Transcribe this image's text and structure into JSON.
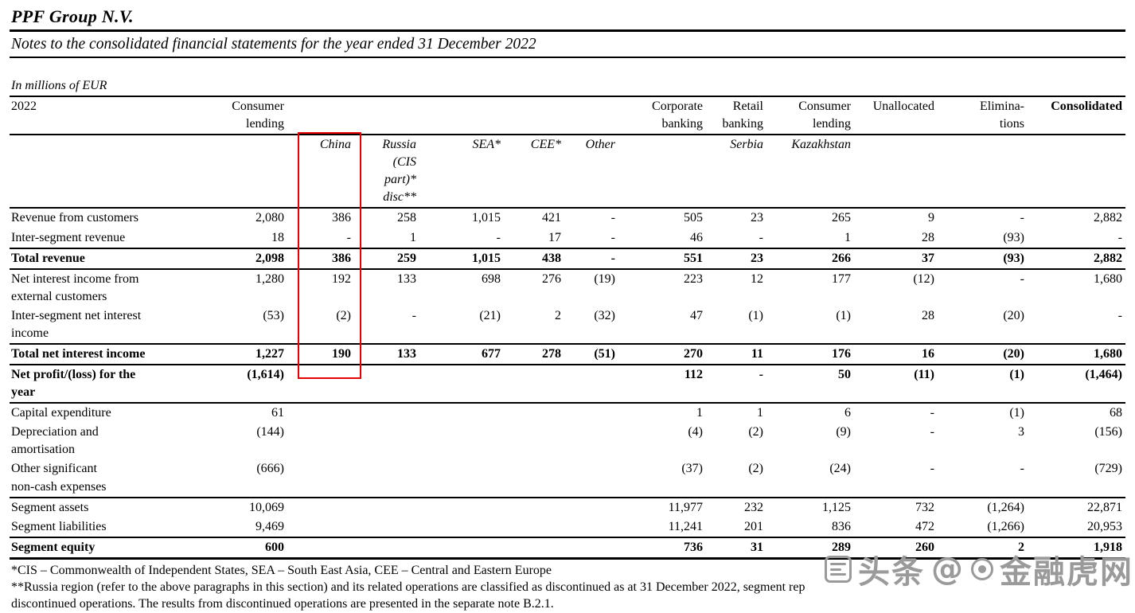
{
  "page": {
    "title": "PPF Group N.V.",
    "subtitle": "Notes to the consolidated financial statements for the year ended 31 December 2022",
    "units_label": "In millions of EUR"
  },
  "table": {
    "header_row1": [
      "2022",
      "Consumer\nlending",
      "",
      "",
      "",
      "",
      "",
      "Corporate\nbanking",
      "Retail\nbanking",
      "Consumer\nlending",
      "Unallocated",
      "Elimina-\ntions",
      "Consolidated"
    ],
    "header_row1_bold_index": 12,
    "header_row2": [
      "",
      "",
      "China",
      "Russia\n(CIS\npart)*\ndisc**",
      "SEA*",
      "CEE*",
      "Other",
      "",
      "Serbia",
      "Kazakhstan",
      "",
      "",
      ""
    ],
    "rows": [
      {
        "label": "Revenue from customers",
        "values": [
          "2,080",
          "386",
          "258",
          "1,015",
          "421",
          "-",
          "505",
          "23",
          "265",
          "9",
          "-",
          "2,882"
        ]
      },
      {
        "label": "Inter-segment revenue",
        "values": [
          "18",
          "-",
          "1",
          "-",
          "17",
          "-",
          "46",
          "-",
          "1",
          "28",
          "(93)",
          "-"
        ]
      },
      {
        "label": "Total revenue",
        "emphasis": true,
        "line_above": true,
        "line_below": true,
        "values": [
          "2,098",
          "386",
          "259",
          "1,015",
          "438",
          "-",
          "551",
          "23",
          "266",
          "37",
          "(93)",
          "2,882"
        ]
      },
      {
        "label": "Net interest income from\nexternal customers",
        "values": [
          "1,280",
          "192",
          "133",
          "698",
          "276",
          "(19)",
          "223",
          "12",
          "177",
          "(12)",
          "-",
          "1,680"
        ]
      },
      {
        "label": "Inter-segment net interest\nincome",
        "values": [
          "(53)",
          "(2)",
          "-",
          "(21)",
          "2",
          "(32)",
          "47",
          "(1)",
          "(1)",
          "28",
          "(20)",
          "-"
        ]
      },
      {
        "label": "Total net interest income",
        "emphasis": true,
        "line_above": true,
        "line_below": true,
        "values": [
          "1,227",
          "190",
          "133",
          "677",
          "278",
          "(51)",
          "270",
          "11",
          "176",
          "16",
          "(20)",
          "1,680"
        ]
      },
      {
        "label": "Net profit/(loss) for the\nyear",
        "emphasis": true,
        "line_below": true,
        "values": [
          "(1,614)",
          "",
          "",
          "",
          "",
          "",
          "112",
          "-",
          "50",
          "(11)",
          "(1)",
          "(1,464)"
        ]
      },
      {
        "label": "Capital expenditure",
        "values": [
          "61",
          "",
          "",
          "",
          "",
          "",
          "1",
          "1",
          "6",
          "-",
          "(1)",
          "68"
        ]
      },
      {
        "label": "Depreciation and\namortisation",
        "values": [
          "(144)",
          "",
          "",
          "",
          "",
          "",
          "(4)",
          "(2)",
          "(9)",
          "-",
          "3",
          "(156)"
        ]
      },
      {
        "label": "Other significant\nnon-cash expenses",
        "values": [
          "(666)",
          "",
          "",
          "",
          "",
          "",
          "(37)",
          "(2)",
          "(24)",
          "-",
          "-",
          "(729)"
        ]
      },
      {
        "label": "Segment assets",
        "line_above": true,
        "values": [
          "10,069",
          "",
          "",
          "",
          "",
          "",
          "11,977",
          "232",
          "1,125",
          "732",
          "(1,264)",
          "22,871"
        ]
      },
      {
        "label": "Segment liabilities",
        "values": [
          "9,469",
          "",
          "",
          "",
          "",
          "",
          "11,241",
          "201",
          "836",
          "472",
          "(1,266)",
          "20,953"
        ]
      },
      {
        "label": "Segment equity",
        "emphasis": true,
        "line_above": true,
        "thick_below": true,
        "values": [
          "600",
          "",
          "",
          "",
          "",
          "",
          "736",
          "31",
          "289",
          "260",
          "2",
          "1,918"
        ]
      }
    ],
    "highlight": {
      "color": "#e60000",
      "column_label": "China",
      "from_row": "column header",
      "to_row": "Total net interest income"
    }
  },
  "footnotes": [
    "*CIS – Commonwealth of Independent States, SEA – South East Asia, CEE – Central and Eastern Europe",
    "**Russia region (refer to the above paragraphs in this section) and its related operations are classified as discontinued as at 31 December 2022, segment rep\ndiscontinued operations. The results from discontinued operations are presented in the separate note B.2.1."
  ],
  "watermark": {
    "platform": "头条",
    "separator": "@",
    "account": "金融虎网"
  }
}
